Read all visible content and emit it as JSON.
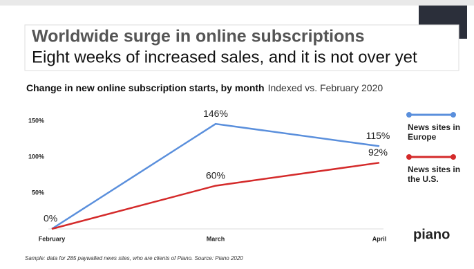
{
  "header": {
    "title": "Worldwide surge in online subscriptions",
    "subtitle": "Eight weeks of increased sales, and it is not over yet"
  },
  "chart_data": {
    "type": "line",
    "title": "Change in new online subscription starts, by month",
    "subtitle": "Indexed vs. February 2020",
    "categories": [
      "February",
      "March",
      "April"
    ],
    "series": [
      {
        "name": "News sites in Europe",
        "color": "#5a8fdc",
        "values": [
          0,
          146,
          115
        ],
        "value_labels": [
          "0%",
          "146%",
          "115%"
        ]
      },
      {
        "name": "News sites in the U.S.",
        "color": "#d42a2a",
        "values": [
          0,
          60,
          92
        ],
        "value_labels": [
          null,
          "60%",
          "92%"
        ]
      }
    ],
    "ylim": [
      0,
      150
    ],
    "yticks": [
      {
        "value": 50,
        "label": "50%"
      },
      {
        "value": 100,
        "label": "100%"
      },
      {
        "value": 150,
        "label": "150%"
      }
    ],
    "grid": false,
    "legend": "right",
    "note": "Sample: data for 285 paywalled news sites, who are clients of Piano. Source: Piano 2020"
  },
  "logo": "piano"
}
